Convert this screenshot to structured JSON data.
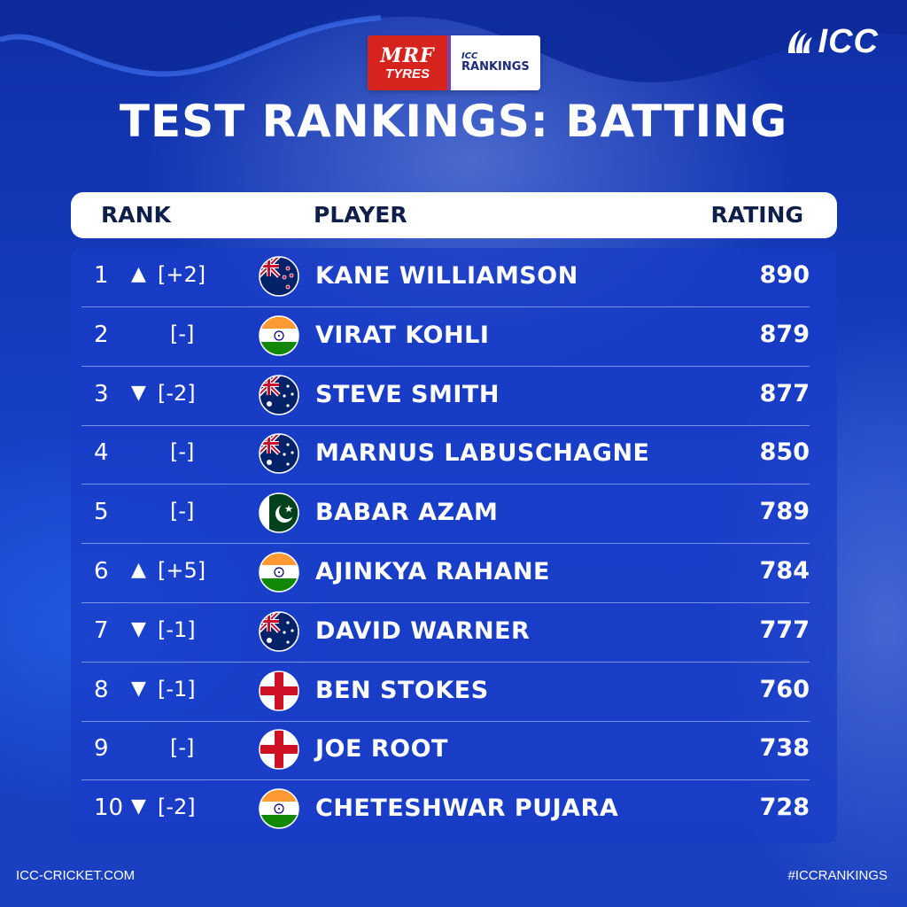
{
  "sponsor": {
    "mrf_line1": "MRF",
    "mrf_line2": "TYRES",
    "icc_line1": "ICC",
    "icc_line2": "RANKINGS"
  },
  "brand": {
    "logo": "ICC"
  },
  "title": "TEST RANKINGS: BATTING",
  "header": {
    "rank": "RANK",
    "player": "PLAYER",
    "rating": "RATING"
  },
  "rows": [
    {
      "rank": "1",
      "arrow": "▲",
      "change": "[+2]",
      "flag": "NZ",
      "player": "KANE WILLIAMSON",
      "rating": "890"
    },
    {
      "rank": "2",
      "arrow": "",
      "change": "[-]",
      "flag": "IND",
      "player": "VIRAT KOHLI",
      "rating": "879"
    },
    {
      "rank": "3",
      "arrow": "▼",
      "change": "[-2]",
      "flag": "AUS",
      "player": "STEVE SMITH",
      "rating": "877"
    },
    {
      "rank": "4",
      "arrow": "",
      "change": "[-]",
      "flag": "AUS",
      "player": "MARNUS LABUSCHAGNE",
      "rating": "850"
    },
    {
      "rank": "5",
      "arrow": "",
      "change": "[-]",
      "flag": "PAK",
      "player": "BABAR AZAM",
      "rating": "789"
    },
    {
      "rank": "6",
      "arrow": "▲",
      "change": "[+5]",
      "flag": "IND",
      "player": "AJINKYA RAHANE",
      "rating": "784"
    },
    {
      "rank": "7",
      "arrow": "▼",
      "change": "[-1]",
      "flag": "AUS",
      "player": "DAVID WARNER",
      "rating": "777"
    },
    {
      "rank": "8",
      "arrow": "▼",
      "change": "[-1]",
      "flag": "ENG",
      "player": "BEN STOKES",
      "rating": "760"
    },
    {
      "rank": "9",
      "arrow": "",
      "change": "[-]",
      "flag": "ENG",
      "player": "JOE ROOT",
      "rating": "738"
    },
    {
      "rank": "10",
      "arrow": "▼",
      "change": "[-2]",
      "flag": "IND",
      "player": "CHETESHWAR PUJARA",
      "rating": "728"
    }
  ],
  "footer": {
    "left": "ICC-CRICKET.COM",
    "right": "#ICCRANKINGS"
  },
  "colors": {
    "background": "#1842c9",
    "panel": "#1e46d2",
    "header_text": "#0f1f4a"
  }
}
